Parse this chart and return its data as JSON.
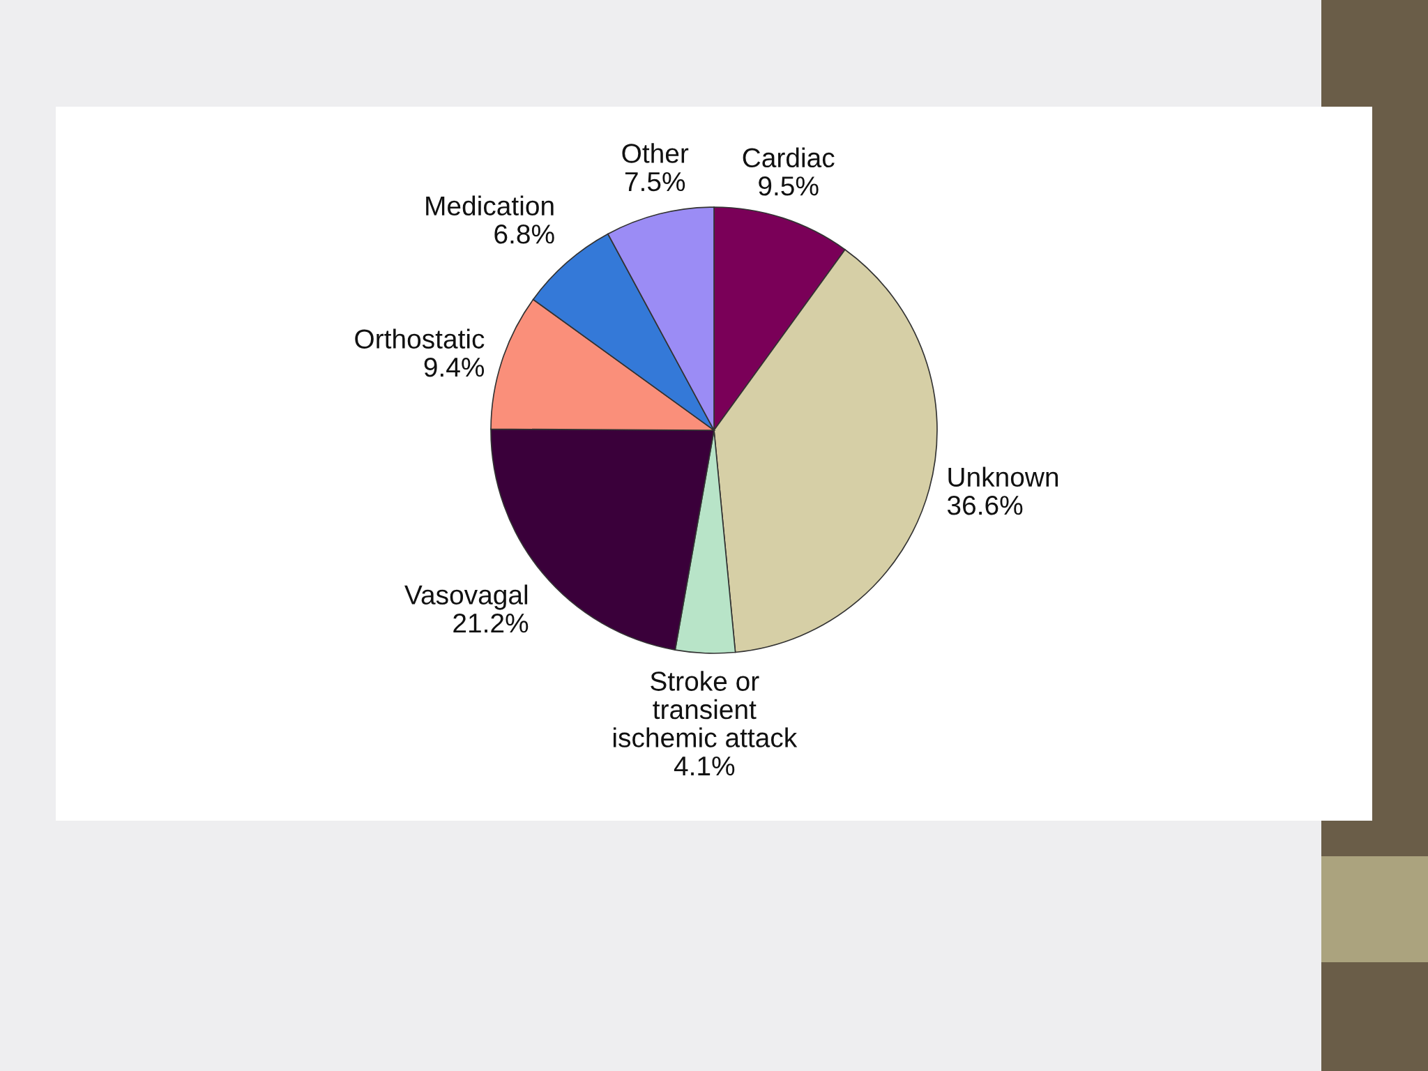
{
  "chart_data": {
    "type": "pie",
    "categories": [
      "Cardiac",
      "Unknown",
      "Stroke or\ntransient\nischemic attack",
      "Vasovagal",
      "Orthostatic",
      "Medication",
      "Other"
    ],
    "values": [
      9.5,
      36.6,
      4.1,
      21.2,
      9.4,
      6.8,
      7.5
    ],
    "value_labels": [
      "9.5%",
      "36.6%",
      "4.1%",
      "21.2%",
      "9.4%",
      "6.8%",
      "7.5%"
    ],
    "colors": [
      "#7a0058",
      "#d6cfa6",
      "#b8e4c8",
      "#3a003a",
      "#fa8f7a",
      "#3479d8",
      "#9b8cf5"
    ],
    "legend": false
  }
}
